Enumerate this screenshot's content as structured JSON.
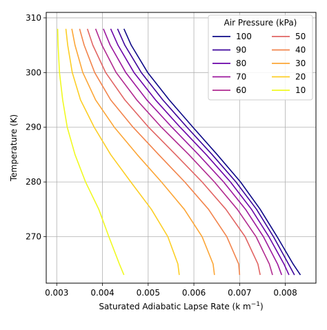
{
  "chart_data": {
    "type": "line",
    "xlabel": "Saturated Adiabatic Lapse Rate (k m",
    "xlabel_sup": "−1",
    "xlabel_suffix": ")",
    "ylabel": "Temperature (K)",
    "xlim": [
      0.00277,
      0.00867
    ],
    "ylim": [
      261.5,
      311
    ],
    "xticks": [
      0.003,
      0.004,
      0.005,
      0.006,
      0.007,
      0.008
    ],
    "xtick_labels": [
      "0.003",
      "0.004",
      "0.005",
      "0.006",
      "0.007",
      "0.008"
    ],
    "yticks": [
      270,
      280,
      290,
      300,
      310
    ],
    "ytick_labels": [
      "270",
      "280",
      "290",
      "300",
      "310"
    ],
    "grid": true,
    "legend": {
      "title": "Air Pressure (kPa)",
      "placement": "top-right",
      "columns": 2
    },
    "temperature": [
      308,
      305,
      300,
      295,
      290,
      285,
      280,
      275,
      270,
      265,
      263
    ],
    "series": [
      {
        "name": "100",
        "color": "#0d0887",
        "x": [
          0.00447,
          0.00463,
          0.00499,
          0.00546,
          0.00598,
          0.00651,
          0.00702,
          0.00745,
          0.00782,
          0.00817,
          0.00833
        ]
      },
      {
        "name": "90",
        "color": "#3e049c",
        "x": [
          0.00433,
          0.00449,
          0.00485,
          0.00532,
          0.00585,
          0.0064,
          0.00692,
          0.00737,
          0.00774,
          0.00807,
          0.0082
        ]
      },
      {
        "name": "80",
        "color": "#6a00a8",
        "x": [
          0.00418,
          0.00434,
          0.00469,
          0.00516,
          0.0057,
          0.00627,
          0.0068,
          0.00726,
          0.00764,
          0.00797,
          0.00808
        ]
      },
      {
        "name": "70",
        "color": "#9c179e",
        "x": [
          0.00402,
          0.00417,
          0.00451,
          0.00497,
          0.00552,
          0.0061,
          0.00665,
          0.00713,
          0.00752,
          0.00783,
          0.00792
        ]
      },
      {
        "name": "60",
        "color": "#b12a90",
        "x": [
          0.00385,
          0.00399,
          0.0043,
          0.00475,
          0.00529,
          0.00589,
          0.00645,
          0.00695,
          0.00736,
          0.00765,
          0.00772
        ]
      },
      {
        "name": "50",
        "color": "#e16462",
        "x": [
          0.00367,
          0.00379,
          0.00407,
          0.00449,
          0.00501,
          0.0056,
          0.00618,
          0.0067,
          0.00712,
          0.0074,
          0.00745
        ]
      },
      {
        "name": "40",
        "color": "#f2844b",
        "x": [
          0.0035,
          0.0036,
          0.00383,
          0.00418,
          0.00467,
          0.00523,
          0.0058,
          0.00632,
          0.00672,
          0.00698,
          0.007
        ]
      },
      {
        "name": "30",
        "color": "#fca636",
        "x": [
          0.00333,
          0.0034,
          0.00357,
          0.00385,
          0.00426,
          0.00476,
          0.00529,
          0.00579,
          0.00618,
          0.00642,
          0.00645
        ]
      },
      {
        "name": "20",
        "color": "#fcce25",
        "x": [
          0.0032,
          0.00324,
          0.00334,
          0.00352,
          0.00382,
          0.00418,
          0.00462,
          0.00507,
          0.00543,
          0.00565,
          0.00568
        ]
      },
      {
        "name": "10",
        "color": "#f0f921",
        "x": [
          0.00302,
          0.00303,
          0.00306,
          0.00313,
          0.00323,
          0.0034,
          0.00363,
          0.00392,
          0.00414,
          0.00437,
          0.00447
        ]
      }
    ]
  }
}
